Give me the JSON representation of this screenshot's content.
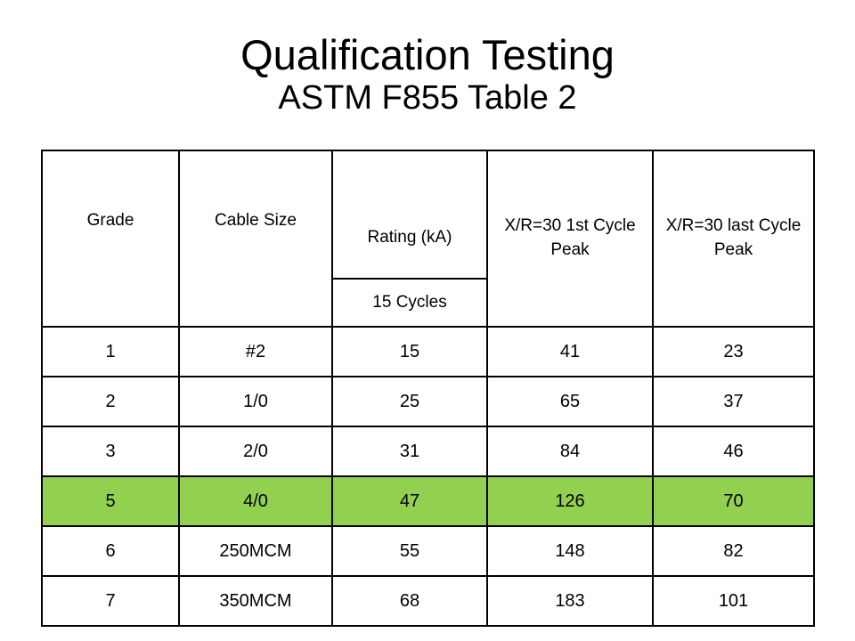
{
  "title": {
    "main": "Qualification Testing",
    "sub": "ASTM F855 Table 2"
  },
  "table": {
    "headers": {
      "grade": "Grade",
      "cable_size": "Cable Size",
      "rating": "Rating (kA)",
      "rating_sub": "15 Cycles",
      "first_peak": "X/R=30 1st Cycle Peak",
      "last_peak": "X/R=30 last Cycle Peak"
    },
    "rows": [
      {
        "grade": "1",
        "cable_size": "#2",
        "rating": "15",
        "first_peak": "41",
        "last_peak": "23",
        "highlight": false
      },
      {
        "grade": "2",
        "cable_size": "1/0",
        "rating": "25",
        "first_peak": "65",
        "last_peak": "37",
        "highlight": false
      },
      {
        "grade": "3",
        "cable_size": "2/0",
        "rating": "31",
        "first_peak": "84",
        "last_peak": "46",
        "highlight": false
      },
      {
        "grade": "5",
        "cable_size": "4/0",
        "rating": "47",
        "first_peak": "126",
        "last_peak": "70",
        "highlight": true
      },
      {
        "grade": "6",
        "cable_size": "250MCM",
        "rating": "55",
        "first_peak": "148",
        "last_peak": "82",
        "highlight": false
      },
      {
        "grade": "7",
        "cable_size": "350MCM",
        "rating": "68",
        "first_peak": "183",
        "last_peak": "101",
        "highlight": false
      }
    ],
    "highlight_color": "#92d050"
  }
}
